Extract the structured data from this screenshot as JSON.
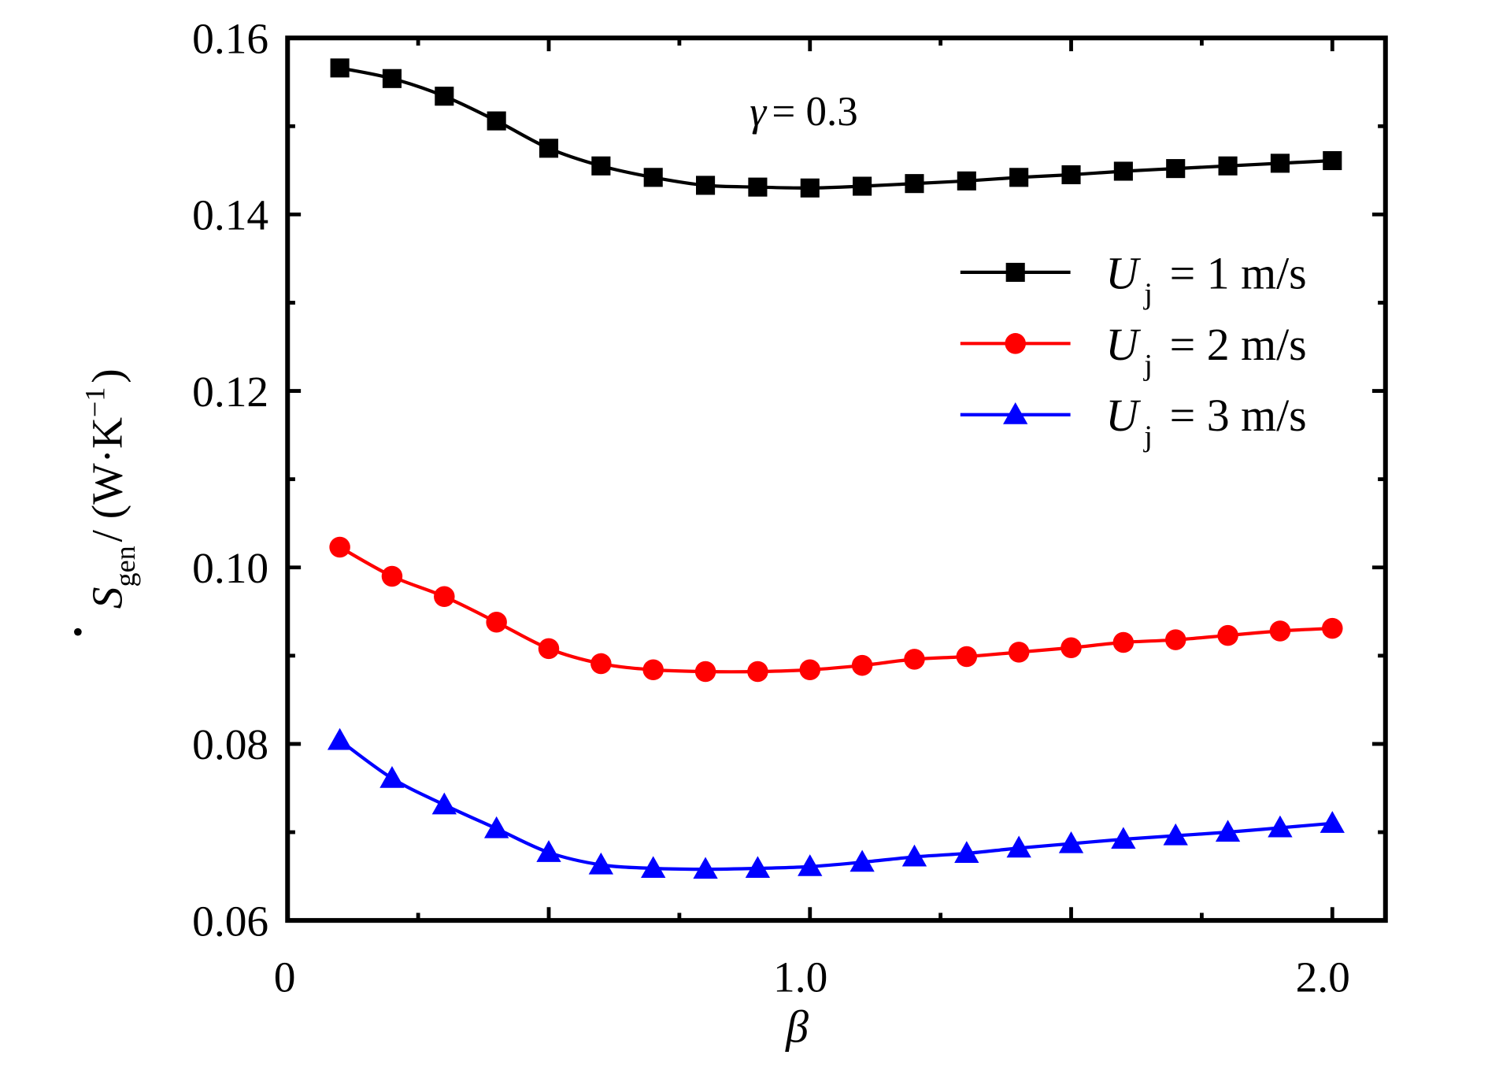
{
  "chart_data": {
    "type": "line",
    "title": "",
    "xlabel": "β",
    "ylabel": {
      "symbol": "S",
      "subscript": "gen",
      "unit": "/ (W·K",
      "exponent": "−1",
      "close": ")"
    },
    "xlim": [
      0,
      2.1
    ],
    "ylim": [
      0.06,
      0.16
    ],
    "x_ticks": [
      0,
      1.0,
      2.0
    ],
    "x_tick_labels": [
      "0",
      "1.0",
      "2.0"
    ],
    "y_ticks": [
      0.06,
      0.08,
      0.1,
      0.12,
      0.14,
      0.16
    ],
    "y_tick_labels": [
      "0.06",
      "0.08",
      "0.10",
      "0.12",
      "0.14",
      "0.16"
    ],
    "grid": false,
    "legend_placement": "upper-right",
    "annotation": {
      "symbol": "γ",
      "text": "= 0.3"
    },
    "x": [
      0.1,
      0.2,
      0.3,
      0.4,
      0.5,
      0.6,
      0.7,
      0.8,
      0.9,
      1.0,
      1.1,
      1.2,
      1.3,
      1.4,
      1.5,
      1.6,
      1.7,
      1.8,
      1.9,
      2.0
    ],
    "series": [
      {
        "name": "U_j = 1 m/s",
        "label_symbol": "U",
        "label_sub": "j",
        "label_rest": "= 1 m/s",
        "color": "#000000",
        "marker": "square",
        "values": [
          0.1566,
          0.1554,
          0.1534,
          0.1506,
          0.1475,
          0.1455,
          0.1442,
          0.1433,
          0.1431,
          0.143,
          0.1432,
          0.1435,
          0.1438,
          0.1442,
          0.1445,
          0.1449,
          0.1452,
          0.1455,
          0.1458,
          0.1461
        ]
      },
      {
        "name": "U_j = 2 m/s",
        "label_symbol": "U",
        "label_sub": "j",
        "label_rest": "= 2 m/s",
        "color": "#ff0000",
        "marker": "circle",
        "values": [
          0.1023,
          0.099,
          0.0967,
          0.0938,
          0.0908,
          0.0891,
          0.0884,
          0.0882,
          0.0882,
          0.0884,
          0.0889,
          0.0896,
          0.0899,
          0.0904,
          0.0909,
          0.0915,
          0.0918,
          0.0923,
          0.0928,
          0.0931
        ]
      },
      {
        "name": "U_j = 3 m/s",
        "label_symbol": "U",
        "label_sub": "j",
        "label_rest": "= 3 m/s",
        "color": "#0000ff",
        "marker": "triangle",
        "values": [
          0.0804,
          0.0761,
          0.0731,
          0.0704,
          0.0677,
          0.0663,
          0.0659,
          0.0658,
          0.0659,
          0.0661,
          0.0666,
          0.0672,
          0.0676,
          0.0682,
          0.0687,
          0.0692,
          0.0696,
          0.07,
          0.0705,
          0.071
        ]
      }
    ]
  }
}
